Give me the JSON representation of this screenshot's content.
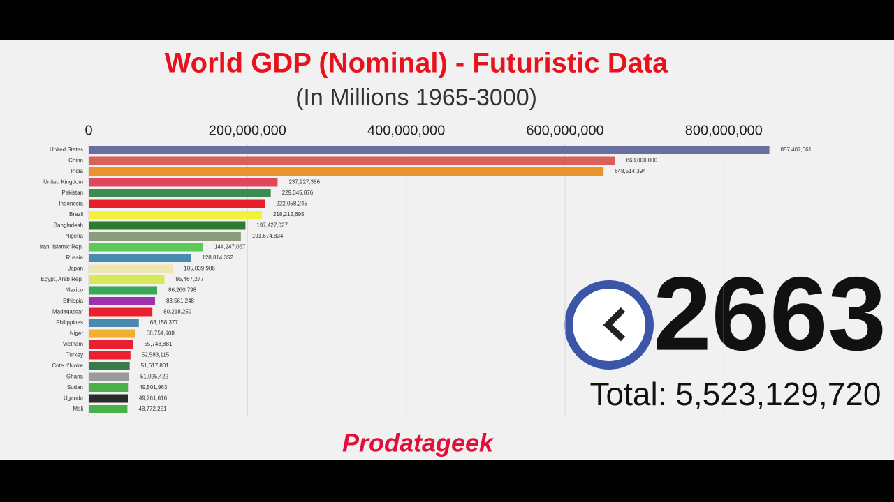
{
  "chart_data": {
    "type": "bar",
    "orientation": "horizontal",
    "title": "World GDP (Nominal) - Futuristic Data",
    "subtitle": "(In Millions 1965-3000)",
    "categories": [
      "United States",
      "China",
      "India",
      "United Kingdom",
      "Pakistan",
      "Indonesia",
      "Brazil",
      "Bangladesh",
      "Nigeria",
      "Iran, Islamic Rep.",
      "Russia",
      "Japan",
      "Egypt, Arab Rep.",
      "Mexico",
      "Ethiopia",
      "Madagascar",
      "Philippines",
      "Niger",
      "Vietnam",
      "Turkey",
      "Cote d'Ivoire",
      "Ghana",
      "Sudan",
      "Uganda",
      "Mali"
    ],
    "values": [
      857407061,
      663000000,
      648514394,
      237927386,
      229345876,
      222058245,
      218212695,
      197427027,
      191674834,
      144247067,
      128814352,
      105839986,
      95467277,
      86260798,
      83561248,
      80218259,
      63158377,
      58754908,
      55743881,
      52583115,
      51617801,
      51025422,
      49501963,
      49261616,
      48772251
    ],
    "value_labels": [
      "857,407,061",
      "663,000,000",
      "648,514,394",
      "237,927,386",
      "229,345,876",
      "222,058,245",
      "218,212,695",
      "197,427,027",
      "191,674,834",
      "144,247,067",
      "128,814,352",
      "105,839,986",
      "95,467,277",
      "86,260,798",
      "83,561,248",
      "80,218,259",
      "63,158,377",
      "58,754,908",
      "55,743,881",
      "52,583,115",
      "51,617,801",
      "51,025,422",
      "49,501,963",
      "49,261,616",
      "48,772,251"
    ],
    "colors": [
      "#6a6fa0",
      "#d9615a",
      "#e8932e",
      "#e0475a",
      "#3e8a55",
      "#e8202a",
      "#f2f23a",
      "#2e7a32",
      "#8a9c7a",
      "#5ec85a",
      "#4a8ab0",
      "#efe5b0",
      "#d8e858",
      "#3aa858",
      "#a030b0",
      "#e82030",
      "#4a88b0",
      "#f0b030",
      "#e82030",
      "#e82030",
      "#3a7a4a",
      "#9a9a9a",
      "#4ab04a",
      "#2a2a2a",
      "#4ab04a"
    ],
    "xlim": [
      0,
      900000000
    ],
    "xticks": [
      0,
      {
        "value": 200000000,
        "label": "200,000,000"
      },
      {
        "value": 400000000,
        "label": "400,000,000"
      },
      {
        "value": 600000000,
        "label": "600,000,000"
      },
      {
        "value": 800000000,
        "label": "800,000,000"
      }
    ],
    "grid": true,
    "year": "2663",
    "total_text": "Total: 5,523,129,720",
    "watermark": "Prodatageek"
  }
}
